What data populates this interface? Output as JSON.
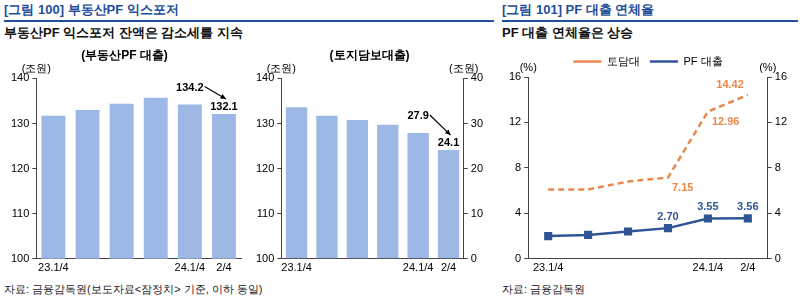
{
  "panels": [
    {
      "title": "[그림 100] 부동산PF 익스포저",
      "subtitle": "부동산PF 익스포저 잔액은 감소세를 지속",
      "source": "자료: 금융감독원(보도자료<잠정치> 기준, 이하 동일)"
    },
    {
      "title": "[그림 101] PF 대출 연체율",
      "subtitle": "PF 대출 연체율은 상승",
      "source": "자료: 금융감독원"
    }
  ],
  "chart_data": [
    {
      "type": "bar",
      "title": "(부동산PF 대출)",
      "ylabel": "(조원)",
      "categories": [
        "23.1/4",
        null,
        null,
        null,
        "24.1/4",
        "2/4"
      ],
      "values": [
        131.7,
        133.0,
        134.4,
        135.7,
        134.2,
        132.1
      ],
      "value_labels": [
        null,
        null,
        null,
        null,
        "134.2",
        "132.1"
      ],
      "data_labels": true,
      "color": "#9db8e5",
      "ylim": [
        100,
        140
      ],
      "yticks": [
        100,
        110,
        120,
        130,
        140
      ],
      "grid": false
    },
    {
      "type": "bar",
      "title": "(토지담보대출)",
      "ylabel": "(조원)",
      "y2label": "(조원)",
      "categories": [
        "23.1/4",
        null,
        null,
        null,
        "24.1/4",
        "2/4"
      ],
      "values": [
        33.6,
        31.7,
        30.8,
        29.7,
        27.9,
        24.1
      ],
      "value_labels": [
        null,
        null,
        null,
        null,
        "27.9",
        "24.1"
      ],
      "axis": "y2",
      "data_labels": true,
      "color": "#9db8e5",
      "ylim": [
        100,
        140
      ],
      "yticks": [
        100,
        110,
        120,
        130,
        140
      ],
      "y2lim": [
        0,
        40
      ],
      "y2ticks": [
        0,
        10,
        20,
        30,
        40
      ],
      "grid": false
    },
    {
      "type": "line",
      "ylabel": "(%)",
      "y2label": "(%)",
      "categories": [
        "23.1/4",
        null,
        null,
        null,
        "24.1/4",
        "2/4"
      ],
      "series": [
        {
          "name": "토담대",
          "color": "#e8884a",
          "line_style": "dashed",
          "marker": "none",
          "axis": "y2",
          "values": [
            6.1,
            6.1,
            6.8,
            7.15,
            12.96,
            14.42
          ],
          "value_labels": [
            null,
            null,
            null,
            "7.15",
            "12.96",
            "14.42"
          ]
        },
        {
          "name": "PF 대출",
          "color": "#2f5597",
          "line_style": "solid",
          "marker": "square",
          "values": [
            2.0,
            2.1,
            2.4,
            2.7,
            3.55,
            3.56
          ],
          "value_labels": [
            null,
            null,
            null,
            "2.70",
            "3.55",
            "3.56"
          ]
        }
      ],
      "data_labels": true,
      "legend": "top",
      "ylim": [
        0,
        16
      ],
      "yticks": [
        0,
        4,
        8,
        12,
        16
      ],
      "y2lim": [
        0,
        16
      ],
      "y2ticks": [
        0,
        4,
        8,
        12,
        16
      ],
      "grid": false
    }
  ]
}
